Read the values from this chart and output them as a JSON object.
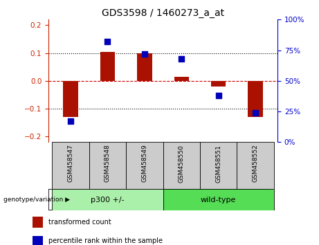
{
  "title": "GDS3598 / 1460273_a_at",
  "samples": [
    "GSM458547",
    "GSM458548",
    "GSM458549",
    "GSM458550",
    "GSM458551",
    "GSM458552"
  ],
  "red_bars": [
    -0.13,
    0.105,
    0.1,
    0.015,
    -0.02,
    -0.13
  ],
  "blue_percentiles": [
    17,
    82,
    72,
    68,
    38,
    24
  ],
  "ylim_left": [
    -0.22,
    0.22
  ],
  "ylim_right": [
    0,
    100
  ],
  "yticks_left": [
    -0.2,
    -0.1,
    0.0,
    0.1,
    0.2
  ],
  "yticks_right": [
    0,
    25,
    50,
    75,
    100
  ],
  "left_color": "#cc2200",
  "right_color": "#0000cc",
  "bar_color": "#aa1100",
  "square_color": "#0000bb",
  "zero_line_color": "#cc0000",
  "groups": [
    {
      "label": "p300 +/-",
      "start": 0,
      "end": 2,
      "color": "#aaf0aa"
    },
    {
      "label": "wild-type",
      "start": 3,
      "end": 5,
      "color": "#55dd55"
    }
  ],
  "group_label": "genotype/variation",
  "legend_items": [
    {
      "label": "transformed count",
      "color": "#aa1100"
    },
    {
      "label": "percentile rank within the sample",
      "color": "#0000bb"
    }
  ],
  "tick_box_color": "#cccccc",
  "bar_width": 0.4,
  "square_size": 40,
  "title_fontsize": 10
}
